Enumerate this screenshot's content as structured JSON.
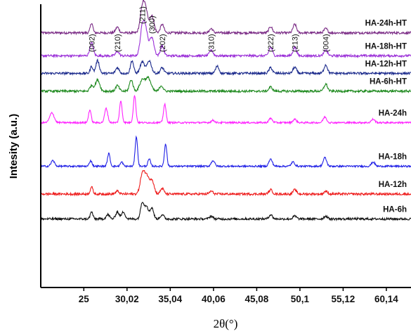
{
  "chart_data": {
    "type": "line",
    "title": "",
    "xlabel": "2θ(°)",
    "ylabel": "Intesity (a.u.)",
    "xlim": [
      20,
      63
    ],
    "ylim": [
      0,
      1
    ],
    "y_ticks": "none",
    "grid": false,
    "legend": "none",
    "x_ticks": [
      {
        "value": 25.0,
        "label": "25"
      },
      {
        "value": 30.02,
        "label": "30,02"
      },
      {
        "value": 35.04,
        "label": "35,04"
      },
      {
        "value": 40.06,
        "label": "40,06"
      },
      {
        "value": 45.08,
        "label": "45,08"
      },
      {
        "value": 50.1,
        "label": "50,1"
      },
      {
        "value": 55.12,
        "label": "55,12"
      },
      {
        "value": 60.14,
        "label": "60,14"
      }
    ],
    "annotations": [
      {
        "label": "(002)",
        "x": 25.9
      },
      {
        "label": "(210)",
        "x": 28.9
      },
      {
        "label": "(211)",
        "x": 31.8
      },
      {
        "label": "(300)",
        "x": 32.9
      },
      {
        "label": "(202)",
        "x": 34.1
      },
      {
        "label": "(310)",
        "x": 39.8
      },
      {
        "label": "(222)",
        "x": 46.7
      },
      {
        "label": "(213)",
        "x": 49.5
      },
      {
        "label": "(004)",
        "x": 53.1
      }
    ],
    "series": [
      {
        "name": "HA-24h-HT",
        "color": "#7b2c86",
        "baseline": 0.899,
        "noise": 0.004,
        "peaks": [
          [
            25.9,
            0.035,
            0.15
          ],
          [
            28.9,
            0.02,
            0.2
          ],
          [
            31.8,
            0.085,
            0.25
          ],
          [
            32.2,
            0.07,
            0.25
          ],
          [
            32.9,
            0.06,
            0.25
          ],
          [
            34.1,
            0.03,
            0.2
          ],
          [
            39.8,
            0.015,
            0.2
          ],
          [
            46.7,
            0.022,
            0.2
          ],
          [
            49.5,
            0.03,
            0.2
          ],
          [
            53.1,
            0.015,
            0.2
          ]
        ]
      },
      {
        "name": "HA-18h-HT",
        "color": "#9b30d8",
        "baseline": 0.818,
        "noise": 0.004,
        "peaks": [
          [
            25.9,
            0.045,
            0.2
          ],
          [
            28.9,
            0.015,
            0.2
          ],
          [
            31.8,
            0.095,
            0.25
          ],
          [
            32.2,
            0.08,
            0.25
          ],
          [
            32.9,
            0.065,
            0.25
          ],
          [
            34.1,
            0.035,
            0.2
          ],
          [
            39.8,
            0.02,
            0.2
          ],
          [
            46.7,
            0.03,
            0.2
          ],
          [
            49.5,
            0.03,
            0.2
          ],
          [
            53.1,
            0.02,
            0.2
          ]
        ]
      },
      {
        "name": "HA-12h-HT",
        "color": "#1b2a8c",
        "baseline": 0.756,
        "noise": 0.004,
        "peaks": [
          [
            25.9,
            0.025,
            0.15
          ],
          [
            26.6,
            0.045,
            0.2
          ],
          [
            28.9,
            0.02,
            0.2
          ],
          [
            30.6,
            0.045,
            0.18
          ],
          [
            31.8,
            0.04,
            0.25
          ],
          [
            32.6,
            0.045,
            0.25
          ],
          [
            34.1,
            0.02,
            0.2
          ],
          [
            40.5,
            0.025,
            0.2
          ],
          [
            46.7,
            0.02,
            0.2
          ],
          [
            49.5,
            0.022,
            0.2
          ],
          [
            53.1,
            0.03,
            0.2
          ]
        ]
      },
      {
        "name": "HA-6h-HT",
        "color": "#1f8a1f",
        "baseline": 0.693,
        "noise": 0.004,
        "peaks": [
          [
            25.9,
            0.02,
            0.2
          ],
          [
            26.6,
            0.04,
            0.25
          ],
          [
            28.9,
            0.02,
            0.2
          ],
          [
            30.5,
            0.04,
            0.2
          ],
          [
            31.8,
            0.04,
            0.3
          ],
          [
            32.5,
            0.045,
            0.3
          ],
          [
            34.0,
            0.02,
            0.2
          ],
          [
            46.7,
            0.015,
            0.2
          ],
          [
            53.1,
            0.025,
            0.2
          ]
        ]
      },
      {
        "name": "HA-24h",
        "color": "#ff22ff",
        "baseline": 0.582,
        "noise": 0.003,
        "peaks": [
          [
            21.3,
            0.035,
            0.25
          ],
          [
            25.7,
            0.045,
            0.15
          ],
          [
            27.6,
            0.05,
            0.18
          ],
          [
            29.3,
            0.075,
            0.15
          ],
          [
            30.9,
            0.095,
            0.15
          ],
          [
            34.4,
            0.065,
            0.15
          ],
          [
            40.0,
            0.008,
            0.2
          ],
          [
            46.7,
            0.015,
            0.2
          ],
          [
            49.5,
            0.012,
            0.2
          ],
          [
            53.0,
            0.02,
            0.2
          ],
          [
            58.6,
            0.012,
            0.2
          ]
        ]
      },
      {
        "name": "HA-18h",
        "color": "#2020e6",
        "baseline": 0.428,
        "noise": 0.003,
        "peaks": [
          [
            21.4,
            0.02,
            0.2
          ],
          [
            25.8,
            0.02,
            0.15
          ],
          [
            27.9,
            0.045,
            0.15
          ],
          [
            29.4,
            0.015,
            0.15
          ],
          [
            31.1,
            0.105,
            0.14
          ],
          [
            32.6,
            0.025,
            0.15
          ],
          [
            34.5,
            0.08,
            0.14
          ],
          [
            40.0,
            0.02,
            0.2
          ],
          [
            46.7,
            0.025,
            0.2
          ],
          [
            49.3,
            0.015,
            0.2
          ],
          [
            53.0,
            0.03,
            0.2
          ],
          [
            58.6,
            0.015,
            0.2
          ]
        ]
      },
      {
        "name": "HA-12h",
        "color": "#ee1c1c",
        "baseline": 0.33,
        "noise": 0.004,
        "peaks": [
          [
            25.9,
            0.025,
            0.15
          ],
          [
            28.9,
            0.01,
            0.2
          ],
          [
            31.8,
            0.07,
            0.25
          ],
          [
            32.3,
            0.06,
            0.25
          ],
          [
            32.9,
            0.05,
            0.25
          ],
          [
            34.1,
            0.02,
            0.2
          ],
          [
            39.8,
            0.01,
            0.2
          ],
          [
            46.7,
            0.015,
            0.2
          ],
          [
            49.5,
            0.015,
            0.2
          ],
          [
            53.1,
            0.01,
            0.2
          ]
        ]
      },
      {
        "name": "HA-6h",
        "color": "#111111",
        "baseline": 0.242,
        "noise": 0.004,
        "peaks": [
          [
            25.9,
            0.025,
            0.15
          ],
          [
            27.8,
            0.015,
            0.2
          ],
          [
            28.9,
            0.025,
            0.2
          ],
          [
            29.6,
            0.025,
            0.2
          ],
          [
            31.8,
            0.06,
            0.2
          ],
          [
            32.3,
            0.045,
            0.2
          ],
          [
            32.9,
            0.04,
            0.2
          ],
          [
            34.1,
            0.015,
            0.2
          ],
          [
            39.8,
            0.01,
            0.2
          ],
          [
            46.7,
            0.015,
            0.2
          ],
          [
            49.5,
            0.01,
            0.2
          ],
          [
            53.1,
            0.01,
            0.2
          ]
        ]
      }
    ]
  }
}
